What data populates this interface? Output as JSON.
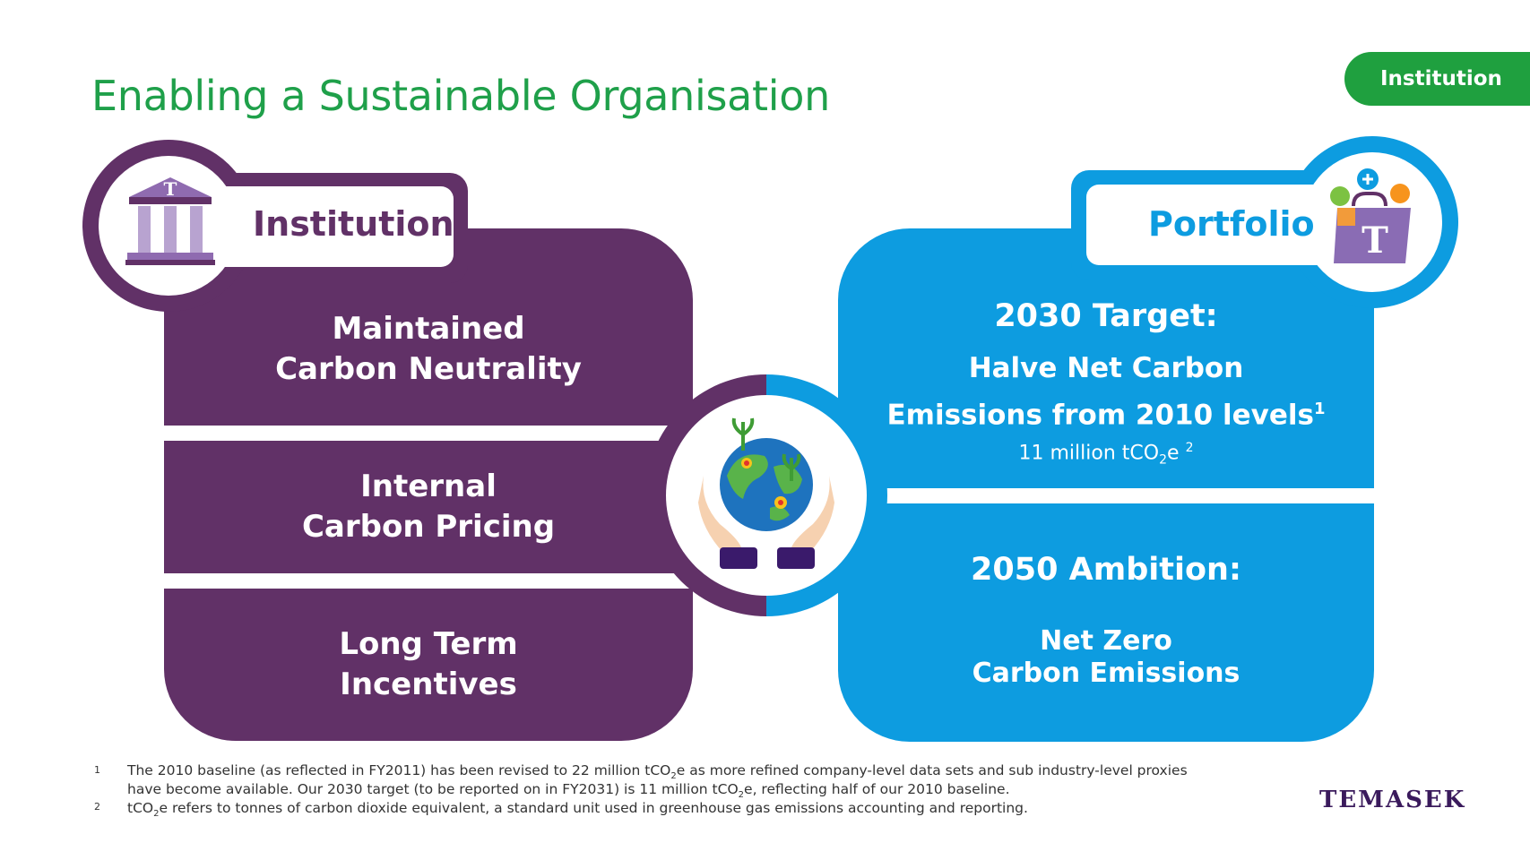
{
  "header": {
    "title": "Enabling a Sustainable Organisation",
    "section_tag": "Institution"
  },
  "institution": {
    "label": "Institution",
    "items": [
      {
        "line1": "Maintained",
        "line2": "Carbon Neutrality"
      },
      {
        "line1": "Internal",
        "line2": "Carbon Pricing"
      },
      {
        "line1": "Long Term",
        "line2": "Incentives"
      }
    ]
  },
  "portfolio": {
    "label": "Portfolio",
    "target_heading": "2030 Target:",
    "target_line1": "Halve Net Carbon",
    "target_line2": "Emissions from 2010 levels",
    "target_sup": "1",
    "target_value_pre": "11 million tCO",
    "target_value_sub": "2",
    "target_value_post": "e",
    "target_value_sup": "2",
    "ambition_heading": "2050 Ambition:",
    "ambition_line1": "Net Zero",
    "ambition_line2": "Carbon Emissions"
  },
  "footnotes": [
    {
      "num": "1",
      "line1_pre": "The 2010 baseline (as reflected in FY2011) has been revised to 22 million tCO",
      "line1_sub": "2",
      "line1_post": "e as more refined company-level data sets and sub industry-level proxies",
      "line2_pre": "have become available. Our 2030 target (to be reported on in FY2031) is 11 million tCO",
      "line2_sub": "2",
      "line2_post": "e, reflecting half of our 2010 baseline."
    },
    {
      "num": "2",
      "line1_pre": "tCO",
      "line1_sub": "2",
      "line1_post": "e refers to tonnes of carbon dioxide equivalent, a standard unit used in greenhouse gas emissions accounting and reporting."
    }
  ],
  "logo_text": "TEMASEK",
  "colors": {
    "title_green": "#1fa04a",
    "institution_purple": "#613167",
    "portfolio_blue": "#0d9ce0",
    "tag_green": "#1fa03f"
  },
  "icons": [
    "bank-building-icon",
    "globe-in-hands-icon",
    "shopping-bag-portfolio-icon"
  ]
}
